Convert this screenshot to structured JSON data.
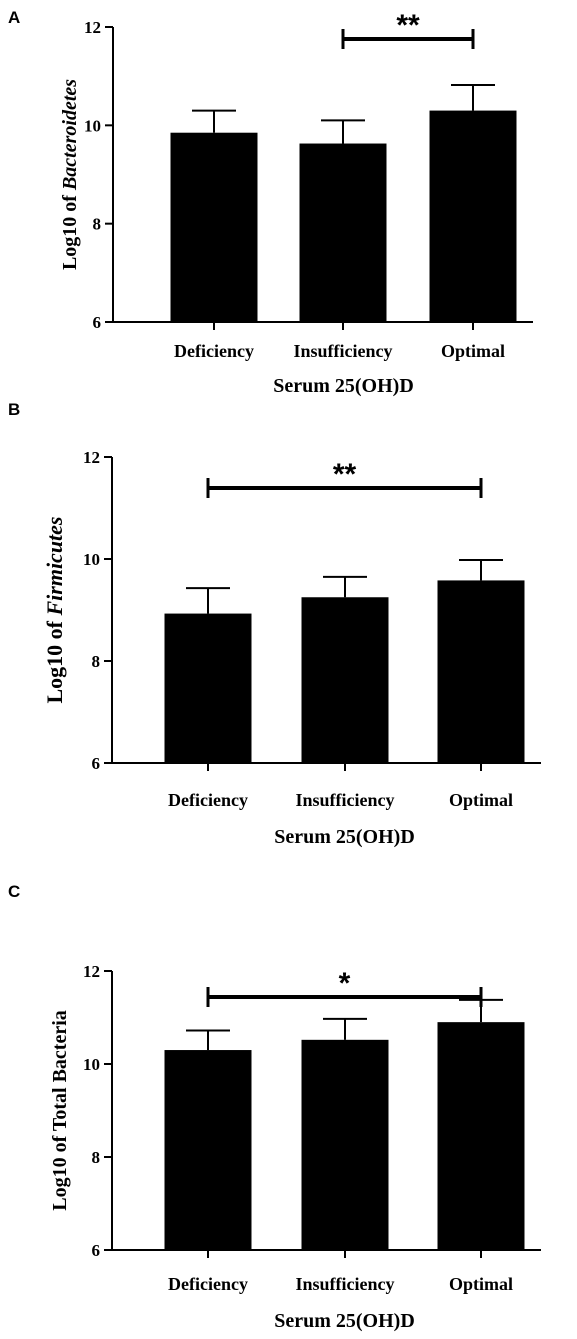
{
  "chart_data": [
    {
      "panel_label": "A",
      "type": "bar",
      "categories": [
        "Deficiency",
        "Insufficiency",
        "Optimal"
      ],
      "values": [
        9.85,
        9.63,
        10.3
      ],
      "errors": [
        0.45,
        0.47,
        0.52
      ],
      "ylim": [
        6,
        12
      ],
      "yticks": [
        "6",
        "8",
        "10",
        "12"
      ],
      "ylabel_prefix": "Log10 of ",
      "ylabel_italic": "Bacteroidetes",
      "xlabel": "Serum 25(OH)D",
      "significance": {
        "from": 1,
        "to": 2,
        "label": "**"
      },
      "bar_color": "#000000"
    },
    {
      "panel_label": "B",
      "type": "bar",
      "categories": [
        "Deficiency",
        "Insufficiency",
        "Optimal"
      ],
      "values": [
        8.93,
        9.25,
        9.58
      ],
      "errors": [
        0.5,
        0.4,
        0.4
      ],
      "ylim": [
        6,
        12
      ],
      "yticks": [
        "6",
        "8",
        "10",
        "12"
      ],
      "ylabel_prefix": "Log10 of ",
      "ylabel_italic": "Firmicutes",
      "xlabel": "Serum 25(OH)D",
      "significance": {
        "from": 0,
        "to": 2,
        "label": "**"
      },
      "bar_color": "#000000"
    },
    {
      "panel_label": "C",
      "type": "bar",
      "categories": [
        "Deficiency",
        "Insufficiency",
        "Optimal"
      ],
      "values": [
        10.3,
        10.52,
        10.9
      ],
      "errors": [
        0.42,
        0.45,
        0.48
      ],
      "ylim": [
        6,
        12
      ],
      "yticks": [
        "6",
        "8",
        "10",
        "12"
      ],
      "ylabel_prefix": "Log10 of Total Bacteria",
      "ylabel_italic": "",
      "xlabel": "Serum 25(OH)D",
      "significance": {
        "from": 0,
        "to": 2,
        "label": "*"
      },
      "bar_color": "#000000"
    }
  ]
}
